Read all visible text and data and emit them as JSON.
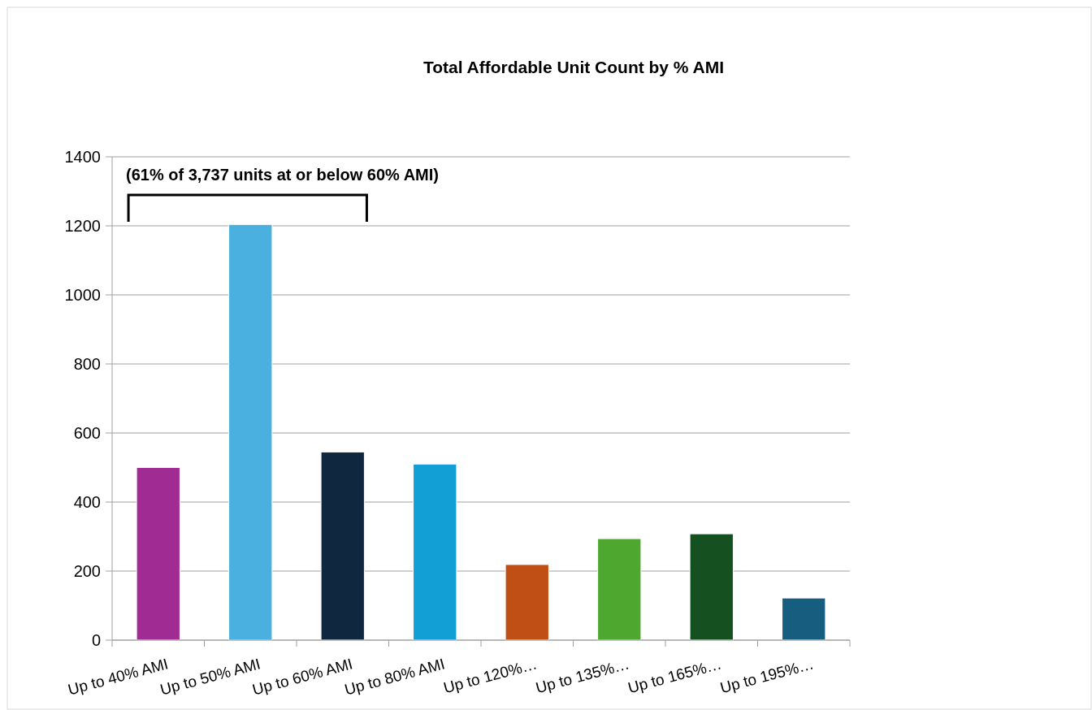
{
  "chart_data": {
    "type": "bar",
    "title": "Total Affordable Unit Count by % AMI",
    "categories": [
      "Up to 40% AMI",
      "Up to 50% AMI",
      "Up to 60% AMI",
      "Up to 80% AMI",
      "Up to 120%…",
      "Up to 135%…",
      "Up to 165%…",
      "Up to 195%…"
    ],
    "values": [
      500,
      1204,
      545,
      510,
      219,
      294,
      308,
      122
    ],
    "colors": [
      "#a02b93",
      "#4ab0e0",
      "#10283f",
      "#119fd6",
      "#c04f15",
      "#4ea72e",
      "#155020",
      "#175d80"
    ],
    "ylim": [
      0,
      1400
    ],
    "yticks": [
      0,
      200,
      400,
      600,
      800,
      1000,
      1200,
      1400
    ],
    "grid": "y",
    "annotations": [
      "(61% of 3,737 units at or below 60% AMI)"
    ]
  }
}
